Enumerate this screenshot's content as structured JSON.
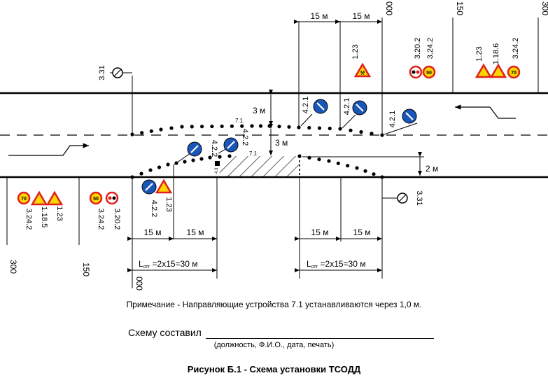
{
  "colors": {
    "line": "#000000",
    "sign_red": "#e0201b",
    "sign_yellow": "#ffd500",
    "sign_blue": "#1a55b8"
  },
  "dimensions": {
    "spacing_15": "15 м",
    "width_3": "3 м",
    "width_2": "2 м",
    "l_prefix": "L",
    "l_sub": "отг",
    "l_value": " =2x15=30 м"
  },
  "distances": {
    "d000": "000",
    "d150": "150",
    "d300": "300"
  },
  "signs": {
    "s331": "3.31",
    "s123": "1.23",
    "s3202": "3.20.2",
    "s3242": "3.24.2",
    "s1186": "1.18.6",
    "s1185": "1.18.5",
    "s421": "4.2.1",
    "s422": "4.2.2",
    "speed_50": "50",
    "speed_70": "70",
    "marker_71": "7.1",
    "marker_43": "4.3"
  },
  "note": "Примечание - Направляющие устройства 7.1 устанавливаются через 1,0 м.",
  "made_by_label": "Схему составил",
  "made_by_hint": "(должность, Ф.И.О., дата, печать)",
  "caption": "Рисунок Б.1 - Схема установки ТСОДД"
}
